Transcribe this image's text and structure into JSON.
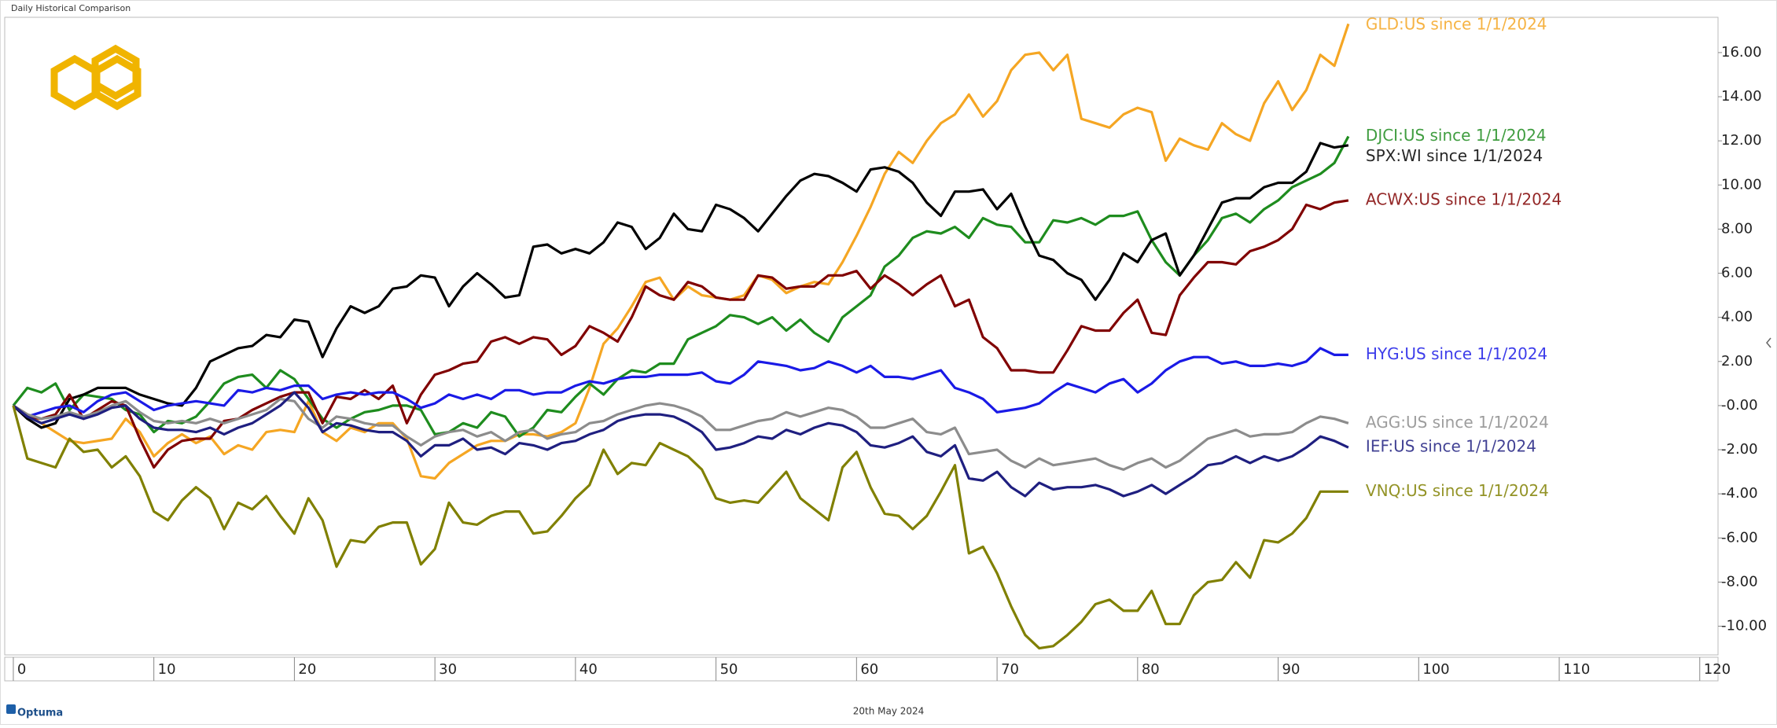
{
  "chart_data": {
    "type": "line",
    "title": "Daily Historical Comparison",
    "caption": "20th May 2024",
    "brand": "Optuma",
    "x": [
      0,
      1,
      2,
      3,
      4,
      5,
      6,
      7,
      8,
      9,
      10,
      11,
      12,
      13,
      14,
      15,
      16,
      17,
      18,
      19,
      20,
      21,
      22,
      23,
      24,
      25,
      26,
      27,
      28,
      29,
      30,
      31,
      32,
      33,
      34,
      35,
      36,
      37,
      38,
      39,
      40,
      41,
      42,
      43,
      44,
      45,
      46,
      47,
      48,
      49,
      50,
      51,
      52,
      53,
      54,
      55,
      56,
      57,
      58,
      59,
      60,
      61,
      62,
      63,
      64,
      65,
      66,
      67,
      68,
      69,
      70,
      71,
      72,
      73,
      74,
      75,
      76,
      77,
      78,
      79,
      80,
      81,
      82,
      83,
      84,
      85,
      86,
      87,
      88,
      89,
      90,
      91,
      92,
      93,
      94,
      95
    ],
    "xlim": [
      -0.5,
      121.3
    ],
    "xticks": [
      0,
      10,
      20,
      30,
      40,
      50,
      60,
      70,
      80,
      90,
      100,
      110,
      120
    ],
    "ylim": [
      -11.3,
      17.6
    ],
    "yticks": [
      {
        "value": -10,
        "label": "-10.00"
      },
      {
        "value": -8,
        "label": "-8.00"
      },
      {
        "value": -6,
        "label": "-6.00"
      },
      {
        "value": -4,
        "label": "-4.00"
      },
      {
        "value": -2,
        "label": "-2.00"
      },
      {
        "value": 0,
        "label": "-0.00"
      },
      {
        "value": 2,
        "label": "2.00"
      },
      {
        "value": 4,
        "label": "4.00"
      },
      {
        "value": 6,
        "label": "6.00"
      },
      {
        "value": 8,
        "label": "8.00"
      },
      {
        "value": 10,
        "label": "10.00"
      },
      {
        "value": 12,
        "label": "12.00"
      },
      {
        "value": 14,
        "label": "14.00"
      },
      {
        "value": 16,
        "label": "16.00"
      }
    ],
    "grid": false,
    "series": [
      {
        "name": "GLD:US since 1/1/2024",
        "color": "#f5a623",
        "values": [
          0,
          -0.4,
          -0.8,
          -1.2,
          -1.6,
          -1.7,
          -1.6,
          -1.5,
          -0.6,
          -1.2,
          -2.3,
          -1.7,
          -1.3,
          -1.7,
          -1.4,
          -2.2,
          -1.8,
          -2.0,
          -1.2,
          -1.1,
          -1.2,
          0.2,
          -1.2,
          -1.6,
          -1.0,
          -1.2,
          -0.8,
          -0.8,
          -1.5,
          -3.2,
          -3.3,
          -2.6,
          -2.2,
          -1.8,
          -1.6,
          -1.6,
          -1.3,
          -1.3,
          -1.4,
          -1.2,
          -0.8,
          0.8,
          2.8,
          3.5,
          4.5,
          5.6,
          5.8,
          4.8,
          5.4,
          5.0,
          4.9,
          4.8,
          5.0,
          5.9,
          5.7,
          5.1,
          5.4,
          5.6,
          5.5,
          6.5,
          7.7,
          9.0,
          10.5,
          11.5,
          11.0,
          12.0,
          12.8,
          13.2,
          14.1,
          13.1,
          13.8,
          15.2,
          15.9,
          16.0,
          15.2,
          15.9,
          13.0,
          12.8,
          12.6,
          13.2,
          13.5,
          13.3,
          11.1,
          12.1,
          11.8,
          11.6,
          12.8,
          12.3,
          12.0,
          13.7,
          14.7,
          13.4,
          14.3,
          15.9,
          15.4,
          17.3
        ]
      },
      {
        "name": "DJCI:US since 1/1/2024",
        "color": "#1e8c1e",
        "values": [
          0,
          0.8,
          0.6,
          1.0,
          -0.2,
          0.5,
          0.4,
          0.3,
          -0.2,
          -0.4,
          -1.2,
          -0.7,
          -0.8,
          -0.5,
          0.2,
          1.0,
          1.3,
          1.4,
          0.8,
          1.6,
          1.2,
          0.3,
          -0.6,
          -1.0,
          -0.6,
          -0.3,
          -0.2,
          0.0,
          0.0,
          -0.2,
          -1.3,
          -1.2,
          -0.8,
          -1.0,
          -0.3,
          -0.5,
          -1.4,
          -1.0,
          -0.2,
          -0.3,
          0.4,
          1.0,
          0.5,
          1.2,
          1.6,
          1.5,
          1.9,
          1.9,
          3.0,
          3.3,
          3.6,
          4.1,
          4.0,
          3.7,
          4.0,
          3.4,
          3.9,
          3.3,
          2.9,
          4.0,
          4.5,
          5.0,
          6.3,
          6.8,
          7.6,
          7.9,
          7.8,
          8.1,
          7.6,
          8.5,
          8.2,
          8.1,
          7.4,
          7.4,
          8.4,
          8.3,
          8.5,
          8.2,
          8.6,
          8.6,
          8.8,
          7.5,
          6.5,
          5.9,
          6.8,
          7.5,
          8.5,
          8.7,
          8.3,
          8.9,
          9.3,
          9.9,
          10.2,
          10.5,
          11.0,
          12.2
        ]
      },
      {
        "name": "SPX:WI since 1/1/2024",
        "color": "#000000",
        "values": [
          0,
          -0.6,
          -1.0,
          -0.8,
          0.3,
          0.5,
          0.8,
          0.8,
          0.8,
          0.5,
          0.3,
          0.1,
          0.0,
          0.8,
          2.0,
          2.3,
          2.6,
          2.7,
          3.2,
          3.1,
          3.9,
          3.8,
          2.2,
          3.5,
          4.5,
          4.2,
          4.5,
          5.3,
          5.4,
          5.9,
          5.8,
          4.5,
          5.4,
          6.0,
          5.5,
          4.9,
          5.0,
          7.2,
          7.3,
          6.9,
          7.1,
          6.9,
          7.4,
          8.3,
          8.1,
          7.1,
          7.6,
          8.7,
          8.0,
          7.9,
          9.1,
          8.9,
          8.5,
          7.9,
          8.7,
          9.5,
          10.2,
          10.5,
          10.4,
          10.1,
          9.7,
          10.7,
          10.8,
          10.6,
          10.1,
          9.2,
          8.6,
          9.7,
          9.7,
          9.8,
          8.9,
          9.6,
          8.1,
          6.8,
          6.6,
          6.0,
          5.7,
          4.8,
          5.7,
          6.9,
          6.5,
          7.5,
          7.8,
          5.9,
          6.8,
          8.0,
          9.2,
          9.4,
          9.4,
          9.9,
          10.1,
          10.1,
          10.6,
          11.9,
          11.7,
          11.8
        ]
      },
      {
        "name": "ACWX:US since 1/1/2024",
        "color": "#800000",
        "values": [
          0,
          -0.5,
          -0.6,
          -0.4,
          0.5,
          -0.6,
          -0.2,
          0.2,
          0.0,
          -1.5,
          -2.8,
          -2.0,
          -1.6,
          -1.5,
          -1.5,
          -0.7,
          -0.6,
          -0.2,
          0.1,
          0.4,
          0.6,
          0.6,
          -0.8,
          0.4,
          0.3,
          0.7,
          0.3,
          0.9,
          -0.8,
          0.5,
          1.4,
          1.6,
          1.9,
          2.0,
          2.9,
          3.1,
          2.8,
          3.1,
          3.0,
          2.3,
          2.7,
          3.6,
          3.3,
          2.9,
          4.0,
          5.4,
          5.0,
          4.8,
          5.6,
          5.4,
          4.9,
          4.8,
          4.8,
          5.9,
          5.8,
          5.3,
          5.4,
          5.4,
          5.9,
          5.9,
          6.1,
          5.3,
          5.9,
          5.5,
          5.0,
          5.5,
          5.9,
          4.5,
          4.8,
          3.1,
          2.6,
          1.6,
          1.6,
          1.5,
          1.5,
          2.5,
          3.6,
          3.4,
          3.4,
          4.2,
          4.8,
          3.3,
          3.2,
          5.0,
          5.8,
          6.5,
          6.5,
          6.4,
          7.0,
          7.2,
          7.5,
          8.0,
          9.1,
          8.9,
          9.2,
          9.3
        ]
      },
      {
        "name": "HYG:US since 1/1/2024",
        "color": "#1a1ae6",
        "values": [
          0,
          -0.5,
          -0.3,
          -0.1,
          0.0,
          -0.3,
          0.2,
          0.5,
          0.6,
          0.2,
          -0.2,
          0.0,
          0.1,
          0.2,
          0.1,
          0.0,
          0.7,
          0.6,
          0.8,
          0.7,
          0.9,
          0.9,
          0.3,
          0.5,
          0.6,
          0.5,
          0.6,
          0.6,
          0.3,
          -0.1,
          0.1,
          0.5,
          0.3,
          0.5,
          0.3,
          0.7,
          0.7,
          0.5,
          0.6,
          0.6,
          0.9,
          1.1,
          1.0,
          1.2,
          1.3,
          1.3,
          1.4,
          1.4,
          1.4,
          1.5,
          1.1,
          1.0,
          1.4,
          2.0,
          1.9,
          1.8,
          1.6,
          1.7,
          2.0,
          1.8,
          1.5,
          1.8,
          1.3,
          1.3,
          1.2,
          1.4,
          1.6,
          0.8,
          0.6,
          0.3,
          -0.3,
          -0.2,
          -0.1,
          0.1,
          0.6,
          1.0,
          0.8,
          0.6,
          1.0,
          1.2,
          0.6,
          1.0,
          1.6,
          2.0,
          2.2,
          2.2,
          1.9,
          2.0,
          1.8,
          1.8,
          1.9,
          1.8,
          2.0,
          2.6,
          2.3,
          2.3
        ]
      },
      {
        "name": "AGG:US since 1/1/2024",
        "color": "#8c8c8c",
        "values": [
          0,
          -0.4,
          -0.6,
          -0.5,
          -0.3,
          -0.5,
          -0.3,
          0.0,
          0.2,
          -0.3,
          -0.7,
          -0.8,
          -0.7,
          -0.8,
          -0.6,
          -0.8,
          -0.6,
          -0.4,
          -0.2,
          0.3,
          0.2,
          -0.6,
          -1.0,
          -0.5,
          -0.6,
          -0.8,
          -0.9,
          -0.9,
          -1.4,
          -1.8,
          -1.4,
          -1.2,
          -1.1,
          -1.4,
          -1.2,
          -1.6,
          -1.2,
          -1.1,
          -1.5,
          -1.3,
          -1.2,
          -0.8,
          -0.7,
          -0.4,
          -0.2,
          0.0,
          0.1,
          0.0,
          -0.2,
          -0.5,
          -1.1,
          -1.1,
          -0.9,
          -0.7,
          -0.6,
          -0.3,
          -0.5,
          -0.3,
          -0.1,
          -0.2,
          -0.5,
          -1.0,
          -1.0,
          -0.8,
          -0.6,
          -1.2,
          -1.3,
          -1.0,
          -2.2,
          -2.1,
          -2.0,
          -2.5,
          -2.8,
          -2.4,
          -2.7,
          -2.6,
          -2.5,
          -2.4,
          -2.7,
          -2.9,
          -2.6,
          -2.4,
          -2.8,
          -2.5,
          -2.0,
          -1.5,
          -1.3,
          -1.1,
          -1.4,
          -1.3,
          -1.3,
          -1.2,
          -0.8,
          -0.5,
          -0.6,
          -0.8
        ]
      },
      {
        "name": "IEF:US since 1/1/2024",
        "color": "#1f1f80",
        "values": [
          0,
          -0.5,
          -0.8,
          -0.6,
          -0.4,
          -0.6,
          -0.4,
          -0.1,
          0.0,
          -0.6,
          -1.0,
          -1.1,
          -1.1,
          -1.2,
          -1.0,
          -1.3,
          -1.0,
          -0.8,
          -0.4,
          0.0,
          0.6,
          -0.1,
          -1.2,
          -0.8,
          -0.9,
          -1.1,
          -1.2,
          -1.2,
          -1.6,
          -2.3,
          -1.8,
          -1.8,
          -1.5,
          -2.0,
          -1.9,
          -2.2,
          -1.7,
          -1.8,
          -2.0,
          -1.7,
          -1.6,
          -1.3,
          -1.1,
          -0.7,
          -0.5,
          -0.4,
          -0.4,
          -0.5,
          -0.8,
          -1.2,
          -2.0,
          -1.9,
          -1.7,
          -1.4,
          -1.5,
          -1.1,
          -1.3,
          -1.0,
          -0.8,
          -0.9,
          -1.2,
          -1.8,
          -1.9,
          -1.7,
          -1.4,
          -2.1,
          -2.3,
          -1.8,
          -3.3,
          -3.4,
          -3.0,
          -3.7,
          -4.1,
          -3.5,
          -3.8,
          -3.7,
          -3.7,
          -3.6,
          -3.8,
          -4.1,
          -3.9,
          -3.6,
          -4.0,
          -3.6,
          -3.2,
          -2.7,
          -2.6,
          -2.3,
          -2.6,
          -2.3,
          -2.5,
          -2.3,
          -1.9,
          -1.4,
          -1.6,
          -1.9
        ]
      },
      {
        "name": "VNQ:US since 1/1/2024",
        "color": "#808000",
        "values": [
          0,
          -2.4,
          -2.6,
          -2.8,
          -1.5,
          -2.1,
          -2.0,
          -2.8,
          -2.3,
          -3.2,
          -4.8,
          -5.2,
          -4.3,
          -3.7,
          -4.2,
          -5.6,
          -4.4,
          -4.7,
          -4.1,
          -5.0,
          -5.8,
          -4.2,
          -5.2,
          -7.3,
          -6.1,
          -6.2,
          -5.5,
          -5.3,
          -5.3,
          -7.2,
          -6.5,
          -4.4,
          -5.3,
          -5.4,
          -5.0,
          -4.8,
          -4.8,
          -5.8,
          -5.7,
          -5.0,
          -4.2,
          -3.6,
          -2.0,
          -3.1,
          -2.6,
          -2.7,
          -1.7,
          -2.0,
          -2.3,
          -2.9,
          -4.2,
          -4.4,
          -4.3,
          -4.4,
          -3.7,
          -3.0,
          -4.2,
          -4.7,
          -5.2,
          -2.8,
          -2.1,
          -3.7,
          -4.9,
          -5.0,
          -5.6,
          -5.0,
          -3.9,
          -2.7,
          -6.7,
          -6.4,
          -7.6,
          -9.1,
          -10.4,
          -11.0,
          -10.9,
          -10.4,
          -9.8,
          -9.0,
          -8.8,
          -9.3,
          -9.3,
          -8.4,
          -9.9,
          -9.9,
          -8.6,
          -8.0,
          -7.9,
          -7.1,
          -7.8,
          -6.1,
          -6.2,
          -5.8,
          -5.1,
          -3.9,
          -3.9,
          -3.9
        ]
      }
    ]
  }
}
